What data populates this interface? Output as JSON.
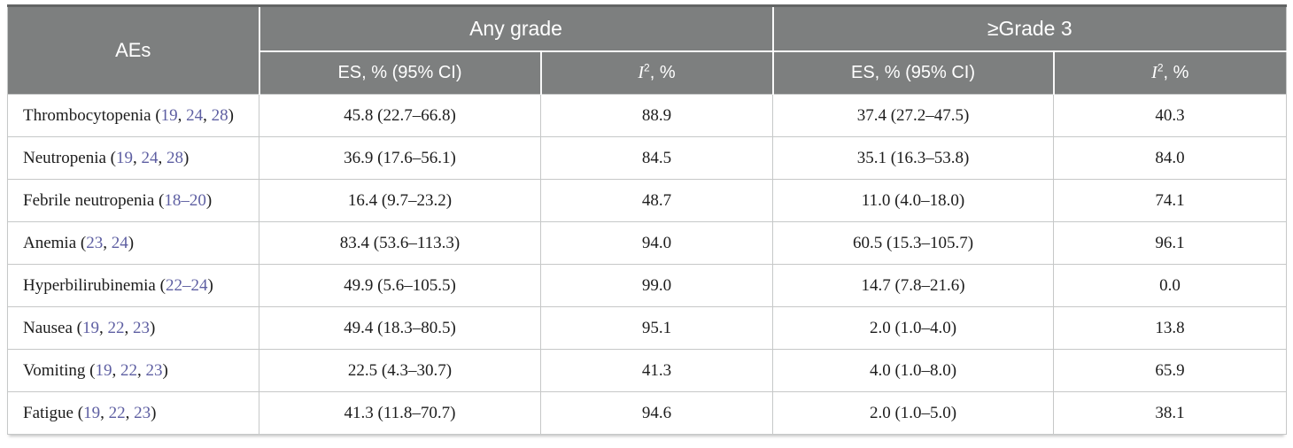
{
  "table": {
    "header": {
      "aes": "AEs",
      "any_grade": "Any grade",
      "grade3": "≥Grade 3",
      "es_label": "ES, % (95% CI)",
      "i2": {
        "letter": "I",
        "sup": "2",
        "suffix": ", %"
      }
    },
    "rows": [
      {
        "ae": "Thrombocytopenia",
        "refs": [
          "19",
          "24",
          "28"
        ],
        "any_es": "45.8 (22.7–66.8)",
        "any_i2": "88.9",
        "g3_es": "37.4 (27.2–47.5)",
        "g3_i2": "40.3"
      },
      {
        "ae": "Neutropenia",
        "refs": [
          "19",
          "24",
          "28"
        ],
        "any_es": "36.9 (17.6–56.1)",
        "any_i2": "84.5",
        "g3_es": "35.1 (16.3–53.8)",
        "g3_i2": "84.0"
      },
      {
        "ae": "Febrile neutropenia",
        "refs": [
          "18–20"
        ],
        "any_es": "16.4 (9.7–23.2)",
        "any_i2": "48.7",
        "g3_es": "11.0 (4.0–18.0)",
        "g3_i2": "74.1"
      },
      {
        "ae": "Anemia",
        "refs": [
          "23",
          "24"
        ],
        "any_es": "83.4 (53.6–113.3)",
        "any_i2": "94.0",
        "g3_es": "60.5 (15.3–105.7)",
        "g3_i2": "96.1"
      },
      {
        "ae": "Hyperbilirubinemia",
        "refs": [
          "22–24"
        ],
        "any_es": "49.9 (5.6–105.5)",
        "any_i2": "99.0",
        "g3_es": "14.7 (7.8–21.6)",
        "g3_i2": "0.0"
      },
      {
        "ae": "Nausea",
        "refs": [
          "19",
          "22",
          "23"
        ],
        "any_es": "49.4 (18.3–80.5)",
        "any_i2": "95.1",
        "g3_es": "2.0 (1.0–4.0)",
        "g3_i2": "13.8"
      },
      {
        "ae": "Vomiting",
        "refs": [
          "19",
          "22",
          "23"
        ],
        "any_es": "22.5 (4.3–30.7)",
        "any_i2": "41.3",
        "g3_es": "4.0 (1.0–8.0)",
        "g3_i2": "65.9"
      },
      {
        "ae": "Fatigue",
        "refs": [
          "19",
          "22",
          "23"
        ],
        "any_es": "41.3 (11.8–70.7)",
        "any_i2": "94.6",
        "g3_es": "2.0 (1.0–5.0)",
        "g3_i2": "38.1"
      }
    ]
  },
  "colors": {
    "header_bg": "#7d7f7f",
    "citation": "#5e5fa2",
    "body_border": "#c6c8c8",
    "body_text": "#1c1c1c"
  }
}
